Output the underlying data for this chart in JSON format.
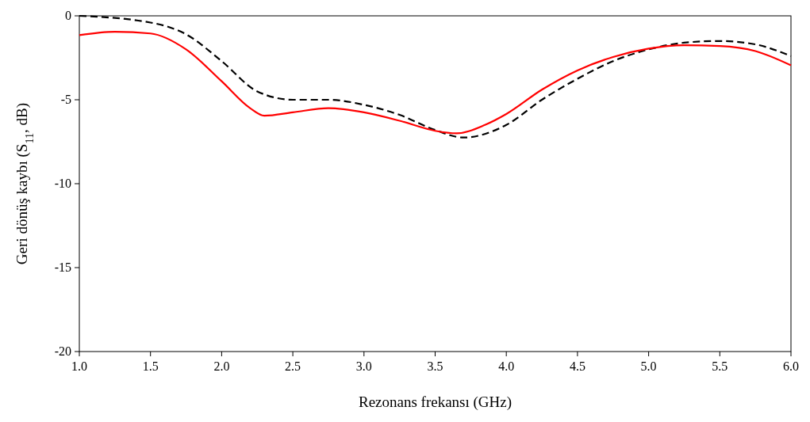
{
  "chart_data": {
    "type": "line",
    "xlabel": "Rezonans frekansı (GHz)",
    "ylabel": "Geri dönüş kaybı (S$_{11}$, dB)",
    "xlim": [
      1,
      6
    ],
    "ylim": [
      -20,
      0
    ],
    "xticks": [
      {
        "value": 1,
        "label": "1.0"
      },
      {
        "value": 1.5,
        "label": "1.5"
      },
      {
        "value": 2,
        "label": "2.0"
      },
      {
        "value": 2.5,
        "label": "2.5"
      },
      {
        "value": 3,
        "label": "3.0"
      },
      {
        "value": 3.5,
        "label": "3.5"
      },
      {
        "value": 4,
        "label": "4.0"
      },
      {
        "value": 4.5,
        "label": "4.5"
      },
      {
        "value": 5,
        "label": "5.0"
      },
      {
        "value": 5.5,
        "label": "5.5"
      },
      {
        "value": 6,
        "label": "6.0"
      }
    ],
    "yticks": [
      -20,
      -15,
      -10,
      -5,
      0
    ],
    "grid": false,
    "marker": "none",
    "series": [
      {
        "color": "#000000",
        "line_style": "dashed",
        "x": [
          1,
          1.5,
          1.75,
          2,
          2.25,
          2.5,
          2.75,
          3,
          3.25,
          3.5,
          3.7,
          4,
          4.25,
          4.5,
          4.75,
          5,
          5.25,
          5.5,
          5.75,
          6
        ],
        "values": [
          0,
          -0.4,
          -1.1,
          -2.7,
          -4.5,
          -5,
          -5,
          -5.3,
          -5.9,
          -6.8,
          -7.25,
          -6.5,
          -5,
          -3.75,
          -2.7,
          -2,
          -1.6,
          -1.5,
          -1.7,
          -2.4
        ]
      },
      {
        "color": "#ff0000",
        "line_style": "solid",
        "x": [
          1,
          1.25,
          1.5,
          1.75,
          2,
          2.2,
          2.3,
          2.5,
          2.75,
          3,
          3.25,
          3.5,
          3.65,
          3.85,
          4,
          4.25,
          4.5,
          4.75,
          5,
          5.25,
          5.5,
          5.75,
          6
        ],
        "values": [
          -1.15,
          -0.95,
          -1.05,
          -2,
          -3.9,
          -5.5,
          -5.95,
          -5.75,
          -5.5,
          -5.75,
          -6.25,
          -6.85,
          -7,
          -6.5,
          -5.85,
          -4.4,
          -3.25,
          -2.45,
          -1.95,
          -1.75,
          -1.8,
          -2.1,
          -2.95
        ]
      }
    ]
  }
}
